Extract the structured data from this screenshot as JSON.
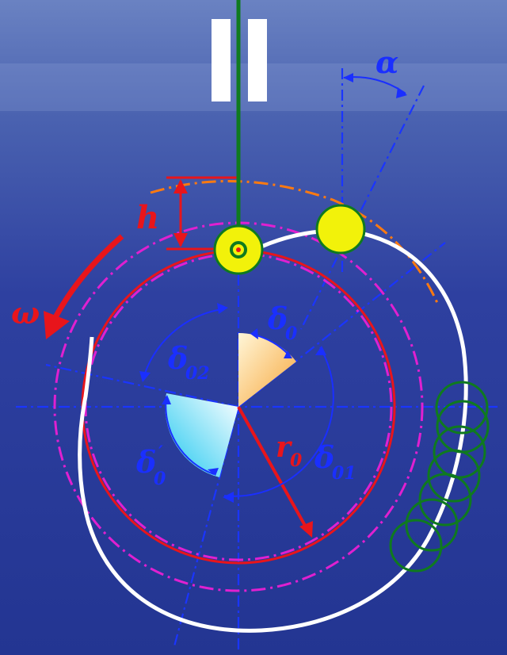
{
  "labels": {
    "alpha": "α",
    "h": "h",
    "omega": "ω",
    "delta0": "δ",
    "delta0_sub": "0",
    "delta02": "δ",
    "delta02_sub": "02",
    "delta0_prime": "δ",
    "delta0_prime_sub": "0",
    "delta0_prime_mark": "′",
    "delta01": "δ",
    "delta01_sub": "01",
    "r0": "r",
    "r0_sub": "0"
  },
  "colors": {
    "background_top": "#5d76b8",
    "background_bottom": "#1f2f86",
    "centerline": "#1a35ff",
    "base_circle": "#e8151b",
    "pitch_circle": "#e020d0",
    "cam_profile": "#ffffff",
    "trace": "#ff7a10",
    "follower_stem": "#0f7a1f",
    "roller": "#f2f20a",
    "pause_symbol": "#ffffff",
    "label_blue": "#1a2fff",
    "label_red": "#e8151b"
  },
  "icons": [
    "pause-icon",
    "rotation-arrow-icon"
  ]
}
